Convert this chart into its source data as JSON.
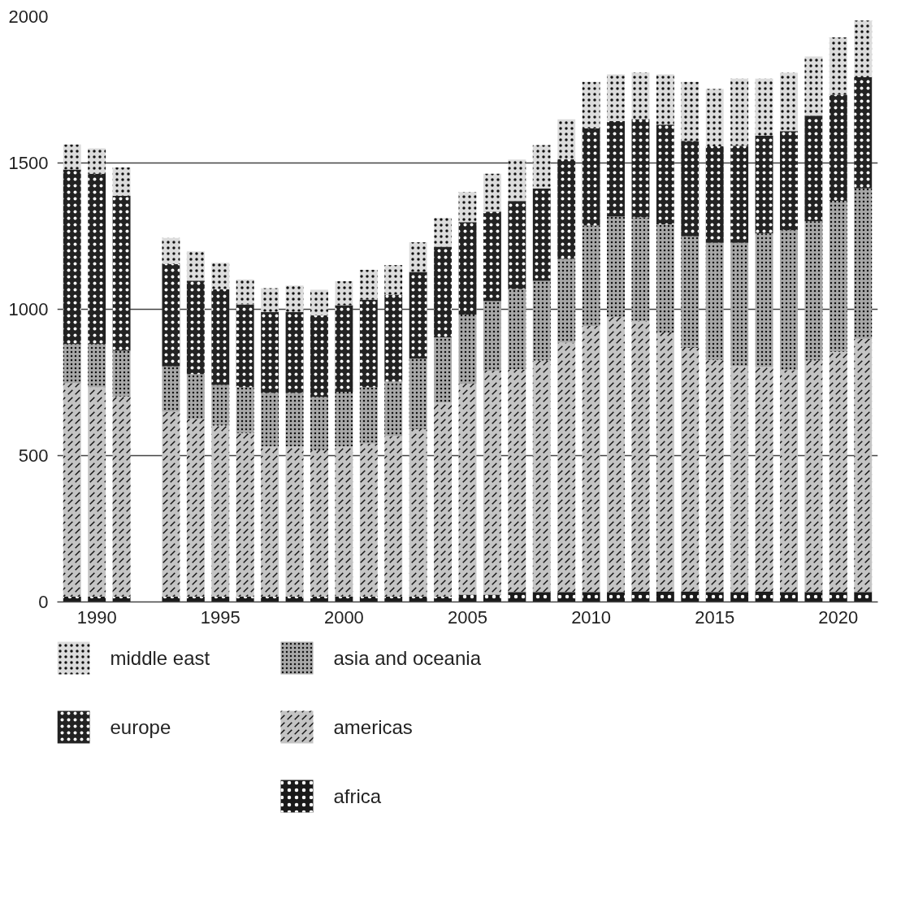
{
  "chart_data": {
    "type": "bar",
    "stacked": true,
    "x": [
      1989,
      1990,
      1991,
      1992,
      1993,
      1994,
      1995,
      1996,
      1997,
      1998,
      1999,
      2000,
      2001,
      2002,
      2003,
      2004,
      2005,
      2006,
      2007,
      2008,
      2009,
      2010,
      2011,
      2012,
      2013,
      2014,
      2015,
      2016,
      2017,
      2018,
      2019,
      2020,
      2021
    ],
    "xlim": [
      1988.4,
      2021.6
    ],
    "xticks": [
      1990,
      1995,
      2000,
      2005,
      2010,
      2015,
      2020
    ],
    "ylim": [
      0,
      2000
    ],
    "yticks": [
      0,
      500,
      1000,
      1500,
      2000
    ],
    "grid": "y",
    "legend": "bottom",
    "series": [
      {
        "name": "africa",
        "color": "#1a1a1a",
        "values": [
          18,
          18,
          18,
          null,
          18,
          18,
          18,
          18,
          18,
          18,
          18,
          18,
          18,
          18,
          18,
          18,
          25,
          25,
          34,
          34,
          34,
          34,
          34,
          36,
          36,
          36,
          34,
          34,
          36,
          34,
          34,
          34,
          34
        ]
      },
      {
        "name": "americas",
        "color": "#c4c4c4",
        "values": [
          729,
          715,
          684,
          null,
          632,
          606,
          585,
          559,
          514,
          514,
          501,
          514,
          523,
          549,
          572,
          664,
          721,
          765,
          760,
          791,
          852,
          909,
          939,
          924,
          885,
          832,
          793,
          773,
          767,
          758,
          791,
          821,
          865
        ]
      },
      {
        "name": "asia and oceania",
        "color": "#a8a8a8",
        "values": [
          134,
          148,
          156,
          null,
          155,
          154,
          139,
          156,
          182,
          182,
          182,
          186,
          192,
          186,
          241,
          222,
          236,
          238,
          275,
          272,
          286,
          343,
          344,
          354,
          369,
          381,
          400,
          420,
          456,
          478,
          476,
          516,
          514
        ]
      },
      {
        "name": "europe",
        "color": "#222222",
        "values": [
          597,
          582,
          530,
          null,
          349,
          320,
          327,
          284,
          277,
          277,
          279,
          296,
          300,
          297,
          297,
          310,
          316,
          306,
          301,
          316,
          341,
          332,
          327,
          336,
          341,
          327,
          330,
          332,
          335,
          339,
          361,
          362,
          380
        ]
      },
      {
        "name": "middle east",
        "color": "#dcdcdc",
        "values": [
          85,
          87,
          97,
          null,
          90,
          100,
          90,
          85,
          81,
          90,
          87,
          82,
          102,
          101,
          101,
          98,
          103,
          129,
          142,
          148,
          136,
          159,
          159,
          159,
          172,
          201,
          196,
          229,
          194,
          199,
          202,
          196,
          194
        ]
      }
    ]
  }
}
